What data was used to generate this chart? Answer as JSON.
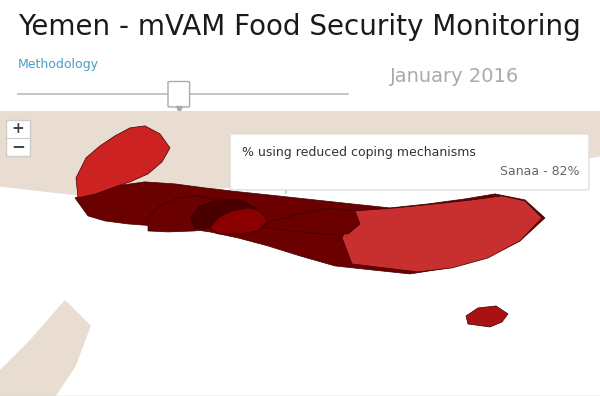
{
  "title": "Yemen - mVAM Food Security Monitoring",
  "methodology_text": "Methodology",
  "date_label": "January 2016",
  "tooltip_header": "% using reduced coping mechanisms",
  "tooltip_value": "Sanaa - 82%",
  "bg_color": "#ffffff",
  "map_bg_color": "#b8e4f0",
  "title_fontsize": 20,
  "methodology_color": "#4a9cc7",
  "slider_color": "#bbbbbb",
  "yemen_dark_red": "#6b0000",
  "yemen_mid_red": "#aa1111",
  "yemen_bright_red": "#cc2222",
  "surrounding_land": "#e8ddd0"
}
